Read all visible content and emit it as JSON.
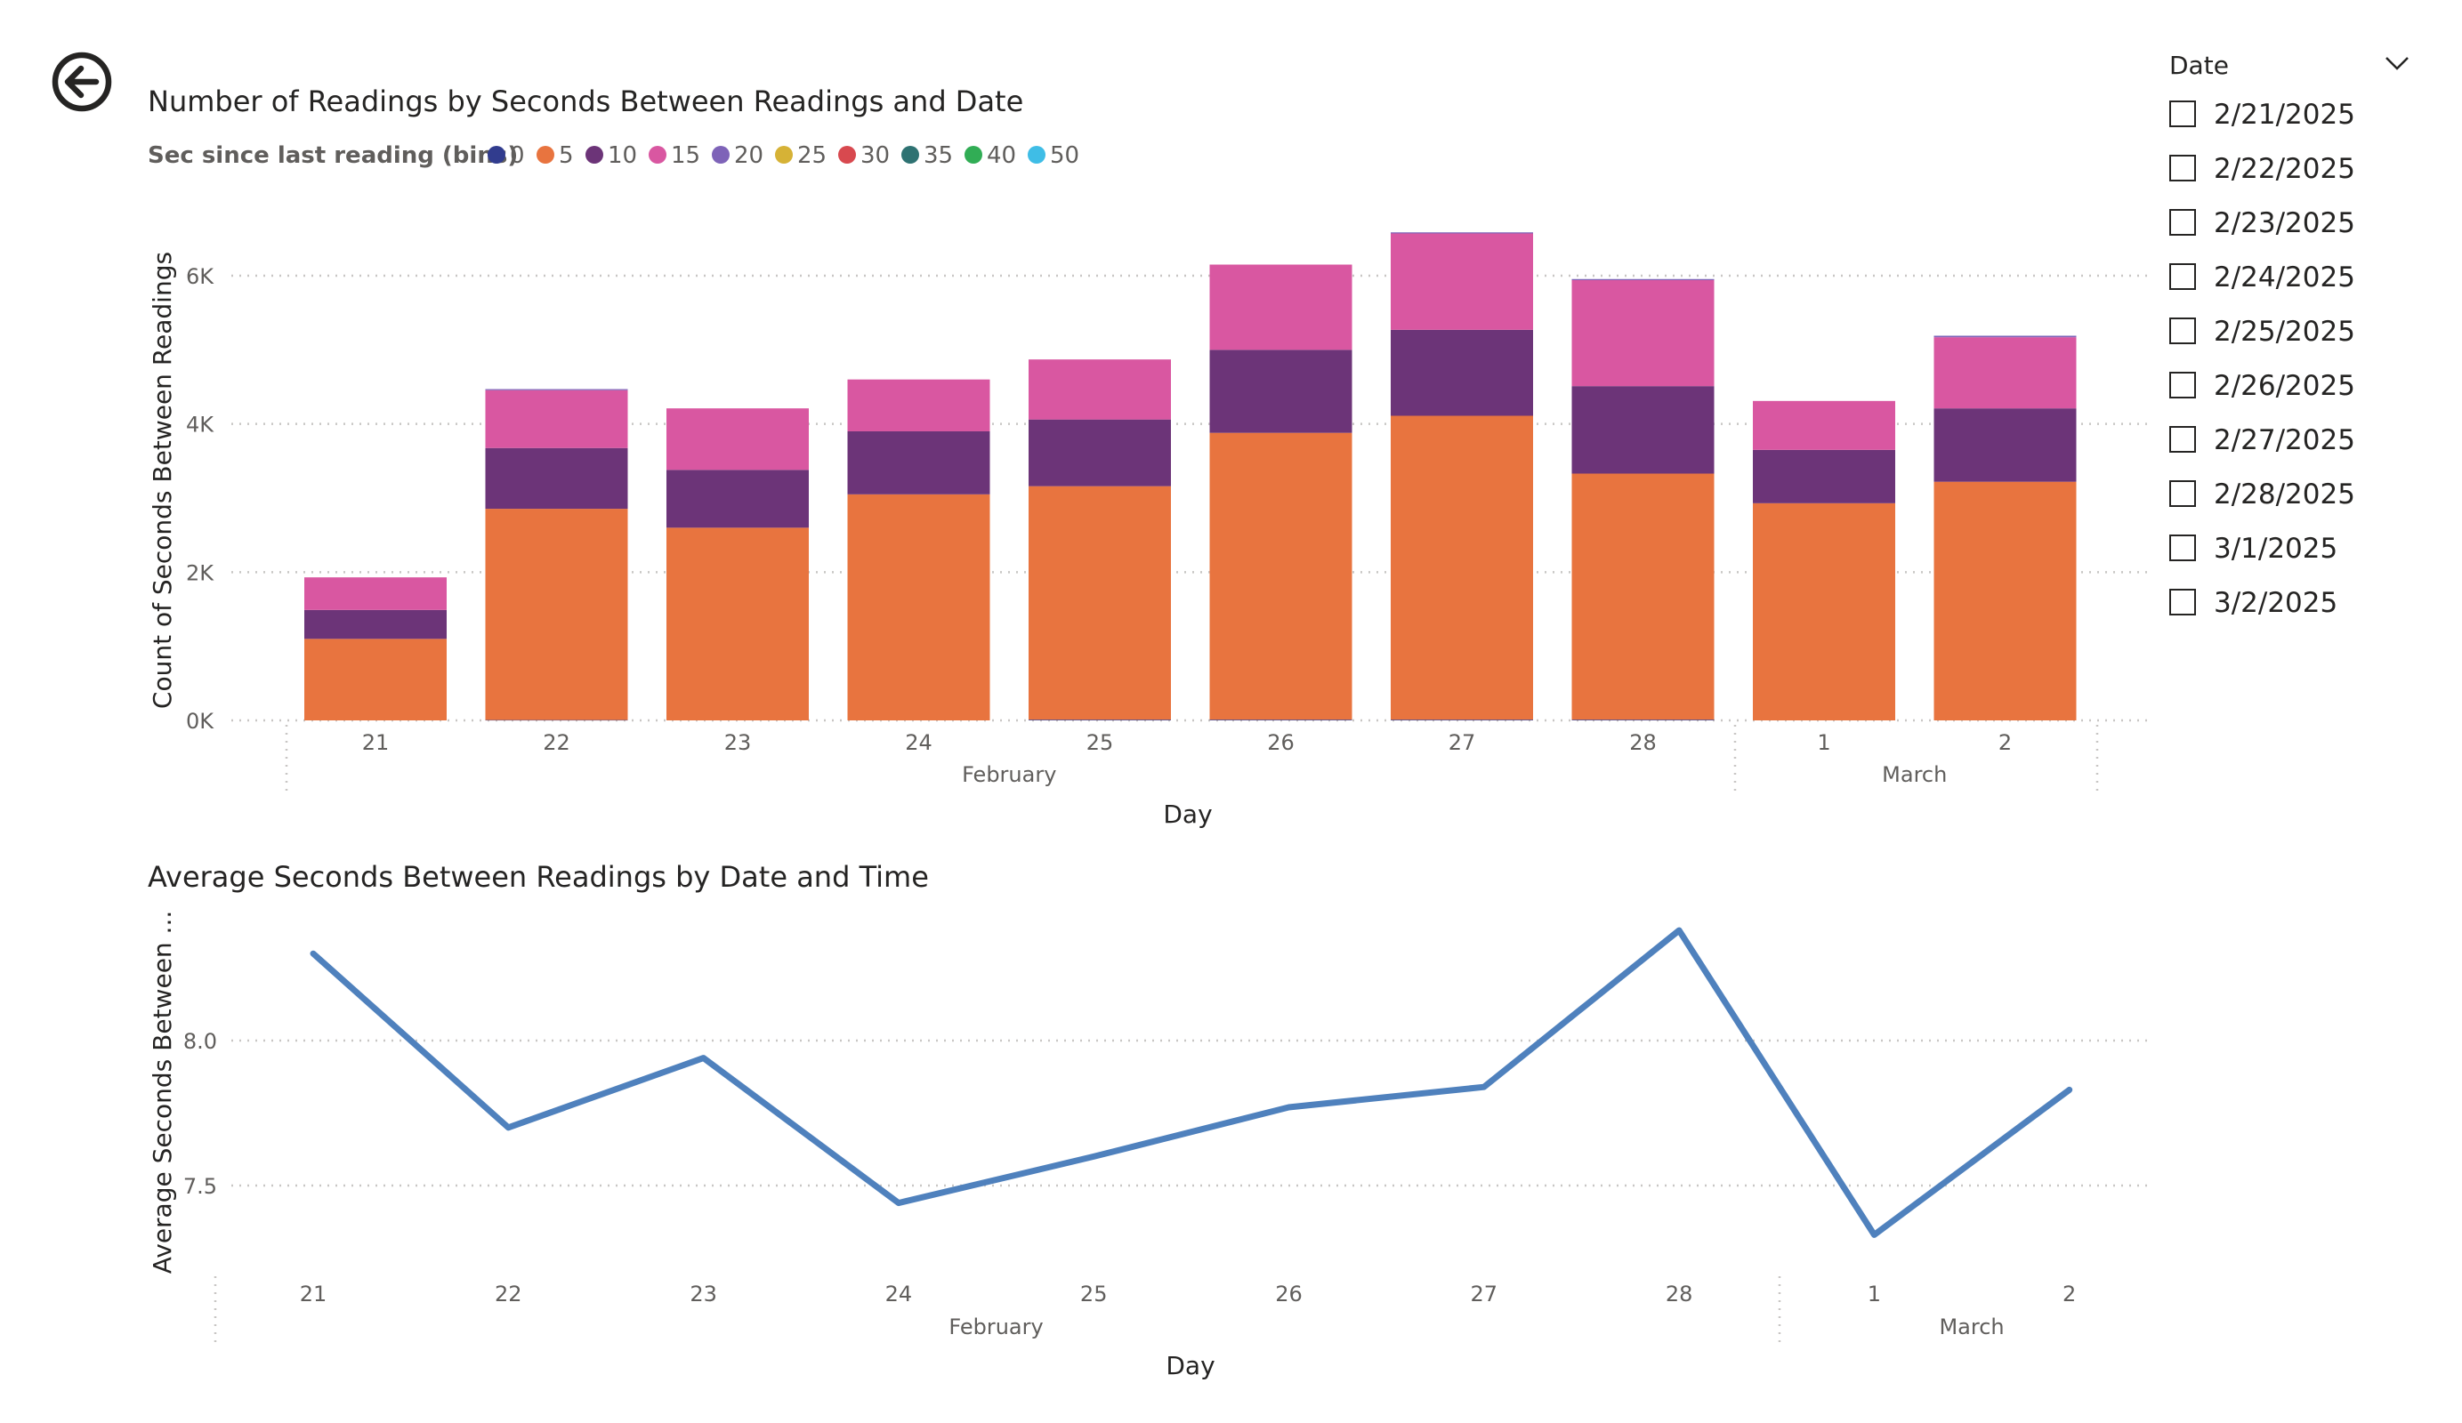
{
  "nav": {
    "back_icon": "back-arrow-circle-icon"
  },
  "colors": {
    "bins": {
      "0": "#313c8e",
      "5": "#e8743f",
      "10": "#6c3478",
      "15": "#d957a1",
      "20": "#7e63b8",
      "25": "#d6b236",
      "30": "#d8494f",
      "35": "#2e7272",
      "40": "#31ad55",
      "50": "#3fbde6"
    },
    "line": "#4f81bd"
  },
  "slicer": {
    "title": "Date",
    "chevron_icon": "chevron-down-icon",
    "items": [
      "2/21/2025",
      "2/22/2025",
      "2/23/2025",
      "2/24/2025",
      "2/25/2025",
      "2/26/2025",
      "2/27/2025",
      "2/28/2025",
      "3/1/2025",
      "3/2/2025"
    ]
  },
  "chart_data": [
    {
      "type": "bar",
      "stacked": true,
      "title": "Number of Readings by Seconds Between Readings and Date",
      "legend_title": "Sec since last reading (bins)",
      "legend_position": "top-left",
      "legend": [
        "0",
        "5",
        "10",
        "15",
        "20",
        "25",
        "30",
        "35",
        "40",
        "50"
      ],
      "categories": [
        "21",
        "22",
        "23",
        "24",
        "25",
        "26",
        "27",
        "28",
        "1",
        "2"
      ],
      "groups": [
        {
          "label": "February",
          "categories": [
            "21",
            "22",
            "23",
            "24",
            "25",
            "26",
            "27",
            "28"
          ]
        },
        {
          "label": "March",
          "categories": [
            "1",
            "2"
          ]
        }
      ],
      "series": [
        {
          "name": "0",
          "values": [
            0,
            5,
            0,
            0,
            10,
            10,
            10,
            10,
            0,
            0
          ]
        },
        {
          "name": "5",
          "values": [
            1100,
            2850,
            2600,
            3050,
            3150,
            3870,
            4100,
            3320,
            2930,
            3220
          ]
        },
        {
          "name": "10",
          "values": [
            390,
            820,
            780,
            850,
            900,
            1120,
            1160,
            1180,
            720,
            990
          ]
        },
        {
          "name": "15",
          "values": [
            440,
            780,
            830,
            700,
            810,
            1150,
            1300,
            1430,
            660,
            960
          ]
        },
        {
          "name": "20",
          "values": [
            0,
            15,
            0,
            0,
            0,
            0,
            15,
            15,
            0,
            20
          ]
        },
        {
          "name": "25",
          "values": [
            0,
            0,
            0,
            0,
            0,
            0,
            0,
            0,
            0,
            0
          ]
        },
        {
          "name": "30",
          "values": [
            0,
            0,
            0,
            0,
            0,
            0,
            0,
            0,
            0,
            0
          ]
        },
        {
          "name": "35",
          "values": [
            0,
            0,
            0,
            0,
            0,
            0,
            0,
            0,
            0,
            0
          ]
        },
        {
          "name": "40",
          "values": [
            0,
            0,
            0,
            0,
            0,
            0,
            0,
            0,
            0,
            0
          ]
        },
        {
          "name": "50",
          "values": [
            0,
            0,
            0,
            0,
            0,
            0,
            0,
            0,
            0,
            0
          ]
        }
      ],
      "ylim": [
        0,
        6000
      ],
      "yticks": [
        {
          "value": 0,
          "label": "0K"
        },
        {
          "value": 2000,
          "label": "2K"
        },
        {
          "value": 4000,
          "label": "4K"
        },
        {
          "value": 6000,
          "label": "6K"
        }
      ],
      "xlabel": "Day",
      "ylabel": "Count of Seconds Between Readings",
      "grid": true
    },
    {
      "type": "line",
      "title": "Average Seconds Between Readings by Date and Time",
      "categories": [
        "21",
        "22",
        "23",
        "24",
        "25",
        "26",
        "27",
        "28",
        "1",
        "2"
      ],
      "groups": [
        {
          "label": "February",
          "categories": [
            "21",
            "22",
            "23",
            "24",
            "25",
            "26",
            "27",
            "28"
          ]
        },
        {
          "label": "March",
          "categories": [
            "1",
            "2"
          ]
        }
      ],
      "values": [
        8.3,
        7.7,
        7.94,
        7.44,
        7.6,
        7.77,
        7.84,
        8.38,
        7.33,
        7.83
      ],
      "ylim": [
        7.2,
        8.45
      ],
      "yticks": [
        {
          "value": 7.5,
          "label": "7.5"
        },
        {
          "value": 8.0,
          "label": "8.0"
        }
      ],
      "xlabel": "Day",
      "ylabel": "Average Seconds Between ...",
      "grid": true
    }
  ]
}
